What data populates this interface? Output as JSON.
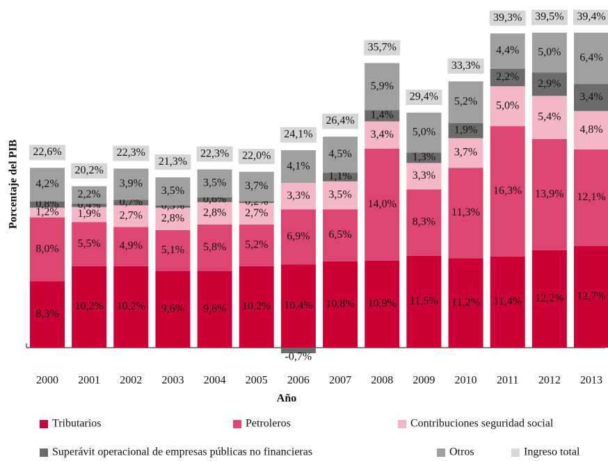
{
  "chart_data": {
    "type": "stacked-bar",
    "ylabel": "Porcentaje del PIB",
    "xlabel": "Año",
    "categories": [
      "2000",
      "2001",
      "2002",
      "2003",
      "2004",
      "2005",
      "2006",
      "2007",
      "2008",
      "2009",
      "2010",
      "2011",
      "2012",
      "2013"
    ],
    "series": [
      {
        "name": "Tributarios",
        "color": "#cc0036",
        "values": [
          8.3,
          10.2,
          10.2,
          9.6,
          9.6,
          10.2,
          10.4,
          10.8,
          10.9,
          11.5,
          11.2,
          11.4,
          12.2,
          12.7
        ],
        "value_labels": [
          "8,3%",
          "10,2%",
          "10,2%",
          "9,6%",
          "9,6%",
          "10,2%",
          "10,4%",
          "10,8%",
          "10,9%",
          "11,5%",
          "11,2%",
          "11,4%",
          "12,2%",
          "12,7%"
        ]
      },
      {
        "name": "Petroleros",
        "color": "#dc4670",
        "values": [
          8.0,
          5.5,
          4.9,
          5.1,
          5.8,
          5.2,
          6.9,
          6.5,
          14.0,
          8.3,
          11.3,
          16.3,
          13.9,
          12.1
        ],
        "value_labels": [
          "8,0%",
          "5,5%",
          "4,9%",
          "5,1%",
          "5,8%",
          "5,2%",
          "6,9%",
          "6,5%",
          "14,0%",
          "8,3%",
          "11,3%",
          "16,3%",
          "13,9%",
          "12,1%"
        ]
      },
      {
        "name": "Contribuciones seguridad social",
        "color": "#f4b7c7",
        "values": [
          1.2,
          1.9,
          2.7,
          2.8,
          2.8,
          2.7,
          3.3,
          3.5,
          3.4,
          3.3,
          3.7,
          5.0,
          5.4,
          4.8
        ],
        "value_labels": [
          "1,2%",
          "1,9%",
          "2,7%",
          "2,8%",
          "2,8%",
          "2,7%",
          "3,3%",
          "3,5%",
          "3,4%",
          "3,3%",
          "3,7%",
          "5,0%",
          "5,4%",
          "4,8%"
        ]
      },
      {
        "name": "Superávit operacional de empresas públicas no financieras",
        "color": "#6b6b6b",
        "values": [
          0.8,
          0.4,
          0.7,
          0.3,
          0.6,
          0.2,
          -0.7,
          1.1,
          1.4,
          1.3,
          1.9,
          2.2,
          2.9,
          3.4
        ],
        "value_labels": [
          "0,8%",
          "0,4%",
          "0,7%",
          "0,3%",
          "0,6%",
          "0,2%",
          "-0,7%",
          "1,1%",
          "1,4%",
          "1,3%",
          "1,9%",
          "2,2%",
          "2,9%",
          "3,4%"
        ]
      },
      {
        "name": "Otros",
        "color": "#a0a0a0",
        "values": [
          4.2,
          2.2,
          3.9,
          3.5,
          3.5,
          3.7,
          4.1,
          4.5,
          5.9,
          5.0,
          5.2,
          4.4,
          5.0,
          6.4
        ],
        "value_labels": [
          "4,2%",
          "2,2%",
          "3,9%",
          "3,5%",
          "3,5%",
          "3,7%",
          "4,1%",
          "4,5%",
          "5,9%",
          "5,0%",
          "5,2%",
          "4,4%",
          "5,0%",
          "6,4%"
        ]
      }
    ],
    "totals": {
      "name": "Ingreso total",
      "color": "#d6d6d6",
      "values": [
        22.6,
        20.2,
        22.3,
        21.3,
        22.3,
        22.0,
        24.1,
        26.4,
        35.7,
        29.4,
        33.3,
        39.3,
        39.5,
        39.4
      ],
      "value_labels": [
        "22,6%",
        "20,2%",
        "22,3%",
        "21,3%",
        "22,3%",
        "22,0%",
        "24,1%",
        "26,4%",
        "35,7%",
        "29,4%",
        "33,3%",
        "39,3%",
        "39,5%",
        "39,4%"
      ]
    }
  }
}
